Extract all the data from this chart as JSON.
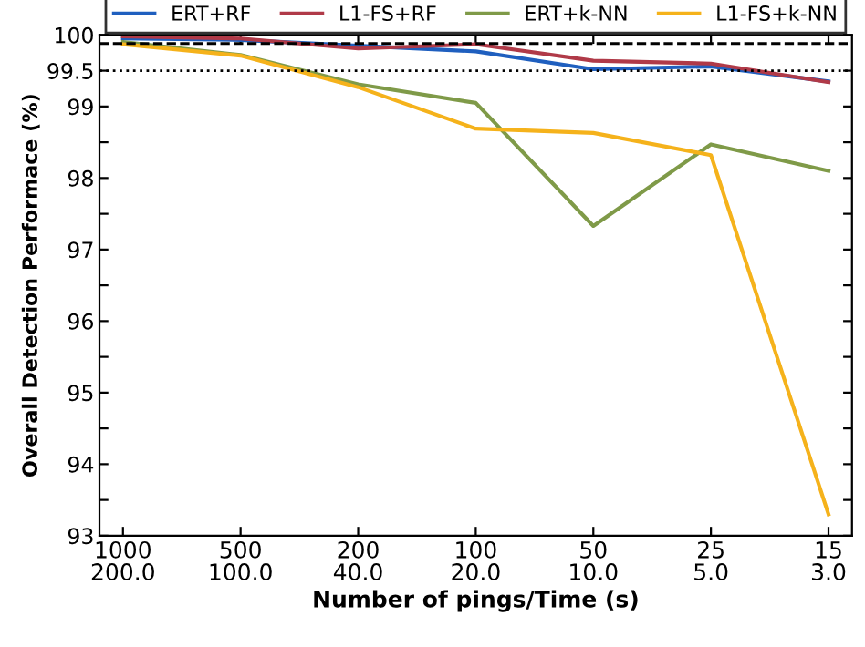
{
  "chart_data": {
    "type": "line",
    "xlabel": "Number of pings/Time (s)",
    "ylabel": "Overall Detection Performace (%)",
    "categories": [
      "1000\n200.0",
      "500\n100.0",
      "200\n40.0",
      "100\n20.0",
      "50\n10.0",
      "25\n5.0",
      "15\n3.0"
    ],
    "series": [
      {
        "name": "ERT+RF",
        "color": "#1f5fbf",
        "values": [
          99.95,
          99.93,
          99.85,
          99.77,
          99.52,
          99.56,
          99.35
        ]
      },
      {
        "name": "L1-FS+RF",
        "color": "#b03a48",
        "values": [
          99.98,
          99.95,
          99.81,
          99.87,
          99.64,
          99.6,
          99.34
        ]
      },
      {
        "name": "ERT+k-NN",
        "color": "#7f9a48",
        "values": [
          99.9,
          99.72,
          99.31,
          99.05,
          97.33,
          98.47,
          98.1
        ]
      },
      {
        "name": "L1-FS+k-NN",
        "color": "#f5b21b",
        "values": [
          99.87,
          99.71,
          99.27,
          98.69,
          98.63,
          98.32,
          93.3
        ]
      }
    ],
    "ylim": [
      93,
      100
    ],
    "yticks": [
      93,
      {
        "value": 93.5,
        "label": null
      },
      94,
      {
        "value": 94.5,
        "label": null
      },
      95,
      {
        "value": 95.5,
        "label": null
      },
      96,
      {
        "value": 96.5,
        "label": null
      },
      97,
      {
        "value": 97.5,
        "label": null
      },
      98,
      {
        "value": 98.5,
        "label": null
      },
      99,
      99.5,
      100
    ],
    "ref_lines": [
      {
        "axis": "y",
        "value": 99.88,
        "color": "#000000",
        "line_style": "dashed"
      },
      {
        "axis": "y",
        "value": 99.5,
        "color": "#000000",
        "line_style": "dotted"
      }
    ],
    "grid": false,
    "legend": "top",
    "marker": "none",
    "line_style": "solid"
  }
}
